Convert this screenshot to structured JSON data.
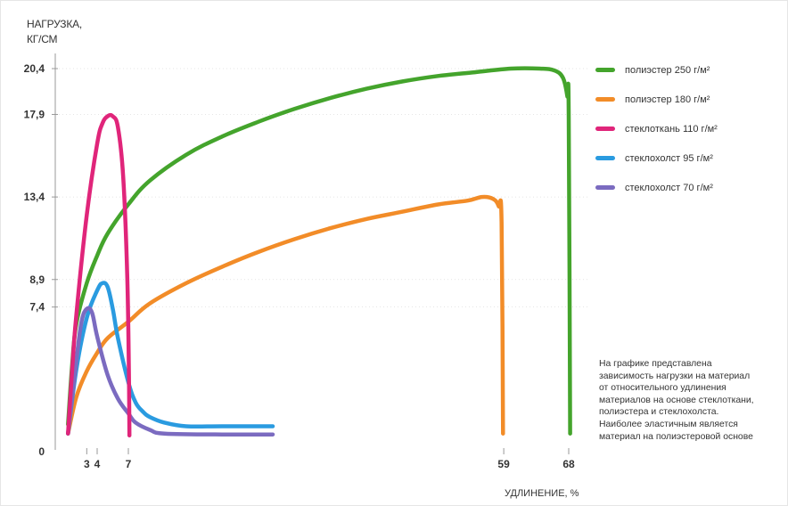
{
  "chart_data": {
    "type": "line",
    "ylabel_lines": [
      "НАГРУЗКА,",
      "КГ/СМ"
    ],
    "xlabel": "УДЛИНЕНИЕ, %",
    "yticks": [
      0,
      7.4,
      8.9,
      13.4,
      17.9,
      20.4
    ],
    "ytick_labels": [
      "0",
      "7,4",
      "8,9",
      "13,4",
      "17,9",
      "20,4"
    ],
    "xticks": [
      3,
      4,
      7,
      59,
      68
    ],
    "ytick_gridlines": [
      7.4,
      8.9,
      13.4,
      17.9,
      20.4
    ],
    "legend_position": "right",
    "series": [
      {
        "name": "полиэстер 250 г/м²",
        "color": "#44a42c",
        "points": [
          [
            1.2,
            1.0
          ],
          [
            1.6,
            4.3
          ],
          [
            2,
            6.5
          ],
          [
            3,
            8.7
          ],
          [
            4,
            10.2
          ],
          [
            5,
            11.4
          ],
          [
            7,
            13.0
          ],
          [
            10,
            14.3
          ],
          [
            15,
            15.7
          ],
          [
            20,
            16.7
          ],
          [
            25,
            17.5
          ],
          [
            30,
            18.2
          ],
          [
            35,
            18.8
          ],
          [
            40,
            19.3
          ],
          [
            45,
            19.7
          ],
          [
            50,
            20.0
          ],
          [
            55,
            20.2
          ],
          [
            60,
            20.4
          ],
          [
            64,
            20.4
          ],
          [
            66,
            20.3
          ],
          [
            67.2,
            19.9
          ],
          [
            67.8,
            18.9
          ],
          [
            68,
            17.9
          ],
          [
            68.2,
            0.5
          ]
        ]
      },
      {
        "name": "полиэстер 180 г/м²",
        "color": "#f28c28",
        "points": [
          [
            1.2,
            0.5
          ],
          [
            2,
            2.5
          ],
          [
            3,
            3.9
          ],
          [
            4,
            4.9
          ],
          [
            5,
            5.7
          ],
          [
            7,
            6.6
          ],
          [
            10,
            7.6
          ],
          [
            15,
            8.7
          ],
          [
            20,
            9.6
          ],
          [
            25,
            10.4
          ],
          [
            30,
            11.1
          ],
          [
            35,
            11.7
          ],
          [
            40,
            12.2
          ],
          [
            45,
            12.6
          ],
          [
            50,
            13.0
          ],
          [
            54,
            13.2
          ],
          [
            56,
            13.4
          ],
          [
            57.5,
            13.3
          ],
          [
            58.3,
            12.9
          ],
          [
            58.7,
            12.0
          ],
          [
            58.9,
            0.5
          ]
        ]
      },
      {
        "name": "стеклоткань 110 г/м²",
        "color": "#e0257a",
        "points": [
          [
            1.2,
            0.5
          ],
          [
            1.6,
            4.0
          ],
          [
            2,
            7.0
          ],
          [
            3,
            12.4
          ],
          [
            4,
            16.3
          ],
          [
            4.5,
            17.4
          ],
          [
            5,
            17.8
          ],
          [
            5.5,
            17.8
          ],
          [
            6,
            17.2
          ],
          [
            6.5,
            14.5
          ],
          [
            6.9,
            9.0
          ],
          [
            7.1,
            3.0
          ],
          [
            7.15,
            0.4
          ]
        ]
      },
      {
        "name": "стеклохолст 95 г/м²",
        "color": "#2a9be0",
        "points": [
          [
            1.2,
            0.5
          ],
          [
            2,
            4.0
          ],
          [
            3,
            6.8
          ],
          [
            4,
            8.3
          ],
          [
            4.5,
            8.7
          ],
          [
            5,
            8.5
          ],
          [
            5.5,
            7.3
          ],
          [
            6,
            5.7
          ],
          [
            7,
            3.3
          ],
          [
            8,
            2.2
          ],
          [
            9,
            1.7
          ],
          [
            10,
            1.4
          ],
          [
            12,
            1.1
          ],
          [
            15,
            0.9
          ],
          [
            20,
            0.9
          ],
          [
            27,
            0.9
          ]
        ]
      },
      {
        "name": "стеклохолст 70 г/м²",
        "color": "#7b6bc0",
        "points": [
          [
            1.2,
            0.5
          ],
          [
            2,
            4.5
          ],
          [
            2.5,
            6.6
          ],
          [
            3,
            7.3
          ],
          [
            3.5,
            7.1
          ],
          [
            4,
            5.8
          ],
          [
            5,
            3.7
          ],
          [
            6,
            2.4
          ],
          [
            7,
            1.6
          ],
          [
            8,
            1.1
          ],
          [
            10,
            0.7
          ],
          [
            12,
            0.5
          ],
          [
            20,
            0.45
          ],
          [
            27,
            0.45
          ]
        ]
      }
    ]
  },
  "note_lines": [
    "На графике представлена",
    "зависимость нагрузки на материал",
    "от относительного удлинения",
    "материалов на основе стеклоткани,",
    "полиэстера и стеклохолста.",
    "Наиболее эластичным является",
    "материал на полиэстеровой основе"
  ],
  "colors": {
    "axis": "#999999",
    "tick_text": "#333333",
    "grid": "#dddddd"
  }
}
